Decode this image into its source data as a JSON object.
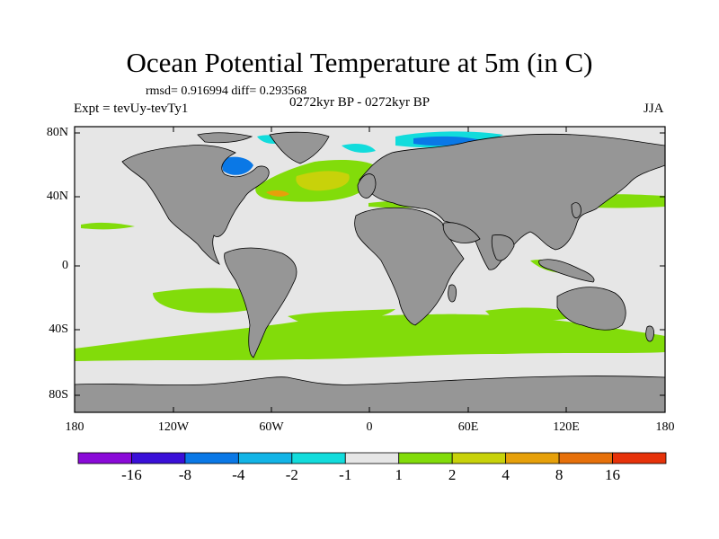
{
  "title": "Ocean Potential Temperature at 5m (in C)",
  "stats": "rmsd= 0.916994 diff= 0.293568",
  "period": "0272kyr BP - 0272kyr BP",
  "experiment": "Expt = tevUy-tevTy1",
  "season": "JJA",
  "map": {
    "lat_ticks": [
      "80N",
      "40N",
      "0",
      "40S",
      "80S"
    ],
    "lon_ticks": [
      "180",
      "120W",
      "60W",
      "0",
      "60E",
      "120E",
      "180"
    ],
    "land_color": "#969696",
    "ocean_background_color": "#e6e6e6"
  },
  "colorbar": {
    "colors": [
      "#8a0ad8",
      "#3a10d8",
      "#0a78e6",
      "#12b4e6",
      "#12dcdc",
      "#e6e6e6",
      "#82dc0a",
      "#c8d20a",
      "#e6a00a",
      "#e6700a",
      "#e6320a"
    ],
    "labels": [
      "-16",
      "-8",
      "-4",
      "-2",
      "-1",
      "1",
      "2",
      "4",
      "8",
      "16"
    ]
  }
}
